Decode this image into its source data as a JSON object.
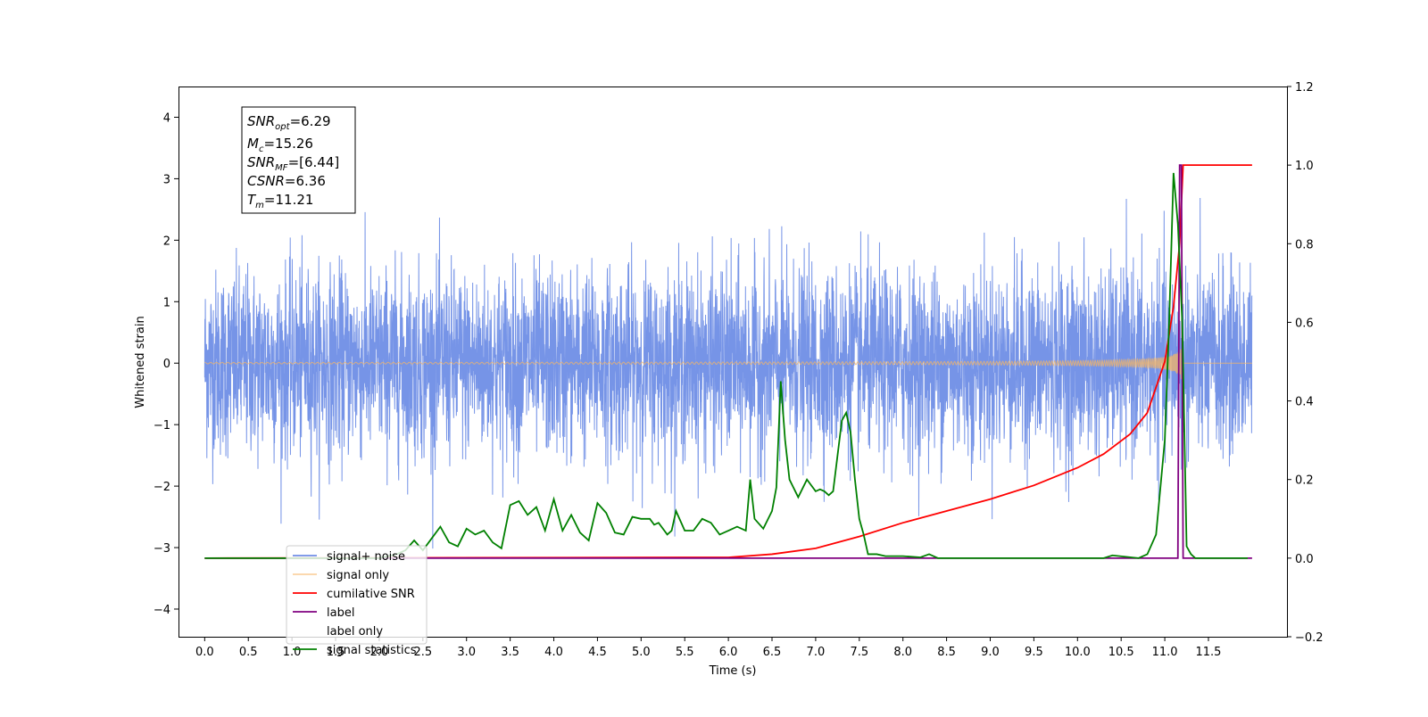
{
  "chart_data": {
    "type": "line",
    "xlabel": "Time (s)",
    "ylabel": "Whitened strain",
    "xlim": [
      -0.3,
      12.4
    ],
    "ylim": [
      -4.45,
      4.5
    ],
    "y2lim": [
      -0.2,
      1.2
    ],
    "grid": false,
    "legend_position": "lower-left",
    "x_ticks": [
      "0.0",
      "0.5",
      "1.0",
      "1.5",
      "2.0",
      "2.5",
      "3.0",
      "3.5",
      "4.0",
      "4.5",
      "5.0",
      "5.5",
      "6.0",
      "6.5",
      "7.0",
      "7.5",
      "8.0",
      "8.5",
      "9.0",
      "9.5",
      "10.0",
      "10.5",
      "11.0",
      "11.5"
    ],
    "y_ticks": [
      "4",
      "3",
      "2",
      "1",
      "0",
      "−1",
      "−2",
      "−3",
      "−4"
    ],
    "y2_ticks": [
      "1.2",
      "1.0",
      "0.8",
      "0.6",
      "0.4",
      "0.2",
      "0.0",
      "−0.2"
    ],
    "info_box": {
      "snr_opt": "6.29",
      "mc": "15.26",
      "snr_mf": "[6.44]",
      "csnr": "6.36",
      "tm": "11.21"
    },
    "series": [
      {
        "name": "signal+ noise",
        "color": "#6f8ee6",
        "axis": "left",
        "noise_sigma": 0.75,
        "x_range": [
          0.0,
          12.0
        ]
      },
      {
        "name": "signal only",
        "color": "#f6b566",
        "axis": "left",
        "merger_time": 11.21,
        "peak_amplitude": 0.4
      },
      {
        "name": "cumilative SNR",
        "color": "#ff0000",
        "axis": "right",
        "x": [
          0,
          6.0,
          6.5,
          7.0,
          7.5,
          8.0,
          8.5,
          9.0,
          9.5,
          10.0,
          10.3,
          10.6,
          10.8,
          11.0,
          11.1,
          11.17,
          11.21,
          11.3,
          12.0
        ],
        "values": [
          0,
          0.002,
          0.01,
          0.025,
          0.055,
          0.09,
          0.12,
          0.15,
          0.185,
          0.23,
          0.265,
          0.315,
          0.37,
          0.5,
          0.64,
          0.8,
          1.0,
          1.0,
          1.0
        ]
      },
      {
        "name": "label",
        "color": "#800080",
        "axis": "right",
        "x": [
          0,
          11.15,
          11.17,
          11.19,
          11.21,
          11.23,
          12.0
        ],
        "values": [
          0,
          0,
          1.0,
          1.0,
          0,
          0,
          0
        ]
      },
      {
        "name": "label only",
        "color": "#000000",
        "axis": "right",
        "hidden": true
      },
      {
        "name": "signal statistics",
        "color": "#008000",
        "axis": "right",
        "x": [
          0,
          2.0,
          2.2,
          2.3,
          2.4,
          2.5,
          2.6,
          2.7,
          2.8,
          2.9,
          3.0,
          3.1,
          3.2,
          3.3,
          3.4,
          3.5,
          3.6,
          3.7,
          3.8,
          3.9,
          4.0,
          4.1,
          4.2,
          4.3,
          4.4,
          4.5,
          4.6,
          4.7,
          4.8,
          4.9,
          5.0,
          5.1,
          5.15,
          5.2,
          5.3,
          5.35,
          5.4,
          5.5,
          5.6,
          5.7,
          5.8,
          5.9,
          6.0,
          6.1,
          6.2,
          6.25,
          6.3,
          6.4,
          6.5,
          6.55,
          6.6,
          6.65,
          6.7,
          6.8,
          6.9,
          7.0,
          7.05,
          7.1,
          7.15,
          7.2,
          7.3,
          7.35,
          7.4,
          7.45,
          7.5,
          7.55,
          7.6,
          7.7,
          7.8,
          8.0,
          8.2,
          8.3,
          8.4,
          8.6,
          10.3,
          10.4,
          10.7,
          10.8,
          10.9,
          11.0,
          11.05,
          11.1,
          11.15,
          11.2,
          11.25,
          11.3,
          11.35,
          11.95
        ],
        "values": [
          0,
          0,
          0.01,
          0.02,
          0.045,
          0.02,
          0.05,
          0.08,
          0.04,
          0.03,
          0.075,
          0.06,
          0.07,
          0.04,
          0.025,
          0.135,
          0.145,
          0.11,
          0.13,
          0.07,
          0.15,
          0.07,
          0.11,
          0.065,
          0.045,
          0.14,
          0.115,
          0.065,
          0.06,
          0.105,
          0.1,
          0.1,
          0.085,
          0.09,
          0.06,
          0.07,
          0.12,
          0.07,
          0.07,
          0.1,
          0.09,
          0.06,
          0.07,
          0.08,
          0.07,
          0.2,
          0.1,
          0.075,
          0.12,
          0.18,
          0.45,
          0.3,
          0.2,
          0.155,
          0.2,
          0.17,
          0.175,
          0.17,
          0.16,
          0.17,
          0.35,
          0.37,
          0.32,
          0.2,
          0.1,
          0.06,
          0.01,
          0.01,
          0.005,
          0.005,
          0.002,
          0.01,
          0.0,
          0.0,
          0.0,
          0.007,
          0.0,
          0.01,
          0.06,
          0.3,
          0.6,
          0.98,
          0.85,
          0.6,
          0.03,
          0.01,
          0.0,
          0.0
        ]
      }
    ]
  }
}
